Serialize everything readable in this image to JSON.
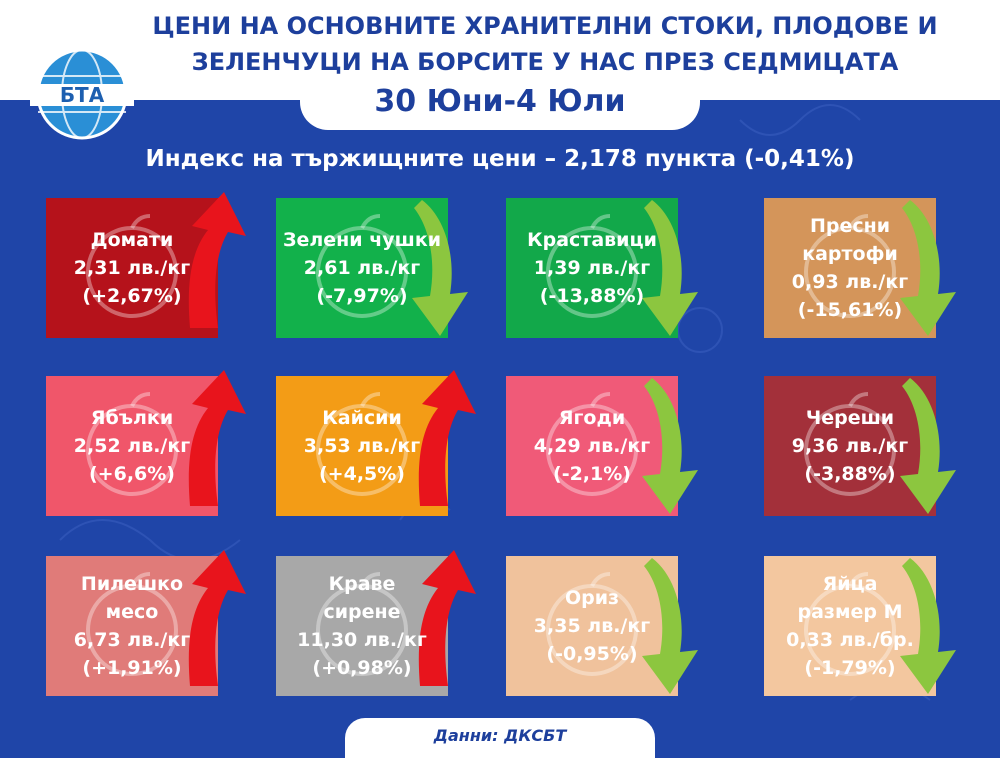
{
  "header": {
    "title_line1": "ЦЕНИ НА ОСНОВНИТЕ ХРАНИТЕЛНИ СТОКИ, ПЛОДОВЕ И",
    "title_line2": "ЗЕЛЕНЧУЦИ НА БОРСИТЕ У НАС ПРЕЗ СЕДМИЦАТА",
    "date": "30 Юни-4 Юли",
    "logo_text": "БТА"
  },
  "index_text": "Индекс на тържищните цени – 2,178 пункта (-0,41%)",
  "colors": {
    "background": "#1f45a8",
    "up_arrow": "#e8141c",
    "down_arrow": "#8cc63f"
  },
  "items": [
    {
      "name": "Домати",
      "price": "2,31 лв./кг",
      "change": "(+2,67%)",
      "direction": "up",
      "color": "#b5121b",
      "icon": "tomato-icon"
    },
    {
      "name": "Зелени чушки",
      "price": "2,61 лв./кг",
      "change": "(-7,97%)",
      "direction": "down",
      "color": "#12b14b",
      "icon": "pepper-icon"
    },
    {
      "name": "Краставици",
      "price": "1,39 лв./кг",
      "change": "(-13,88%)",
      "direction": "down",
      "color": "#12a84a",
      "icon": "cucumber-icon"
    },
    {
      "name": "Пресни картофи",
      "price": "0,93 лв./кг",
      "change": "(-15,61%)",
      "direction": "down",
      "color": "#d4955a",
      "icon": "potato-icon"
    },
    {
      "name": "Ябълки",
      "price": "2,52 лв./кг",
      "change": "(+6,6%)",
      "direction": "up",
      "color": "#f0566a",
      "icon": "apple-icon"
    },
    {
      "name": "Кайсии",
      "price": "3,53 лв./кг",
      "change": "(+4,5%)",
      "direction": "up",
      "color": "#f39c16",
      "icon": "apricot-icon"
    },
    {
      "name": "Ягоди",
      "price": "4,29 лв./кг",
      "change": "(-2,1%)",
      "direction": "down",
      "color": "#f05a78",
      "icon": "strawberry-icon"
    },
    {
      "name": "Череши",
      "price": "9,36 лв./кг",
      "change": "(-3,88%)",
      "direction": "down",
      "color": "#a3303a",
      "icon": "cherries-icon"
    },
    {
      "name": "Пилешко месо",
      "price": "6,73 лв./кг",
      "change": "(+1,91%)",
      "direction": "up",
      "color": "#e07b79",
      "icon": "chicken-icon"
    },
    {
      "name": "Краве сирене",
      "price": "11,30 лв./кг",
      "change": "(+0,98%)",
      "direction": "up",
      "color": "#a8a8a8",
      "icon": "cheese-icon"
    },
    {
      "name": "Ориз",
      "price": "3,35 лв./кг",
      "change": "(-0,95%)",
      "direction": "down",
      "color": "#f0c29c",
      "icon": "rice-icon"
    },
    {
      "name": "Яйца размер М",
      "price": "0,33 лв./бр.",
      "change": "(-1,79%)",
      "direction": "down",
      "color": "#f3c79f",
      "icon": "eggs-icon"
    }
  ],
  "footer": {
    "source": "Данни: ДКСБТ"
  }
}
